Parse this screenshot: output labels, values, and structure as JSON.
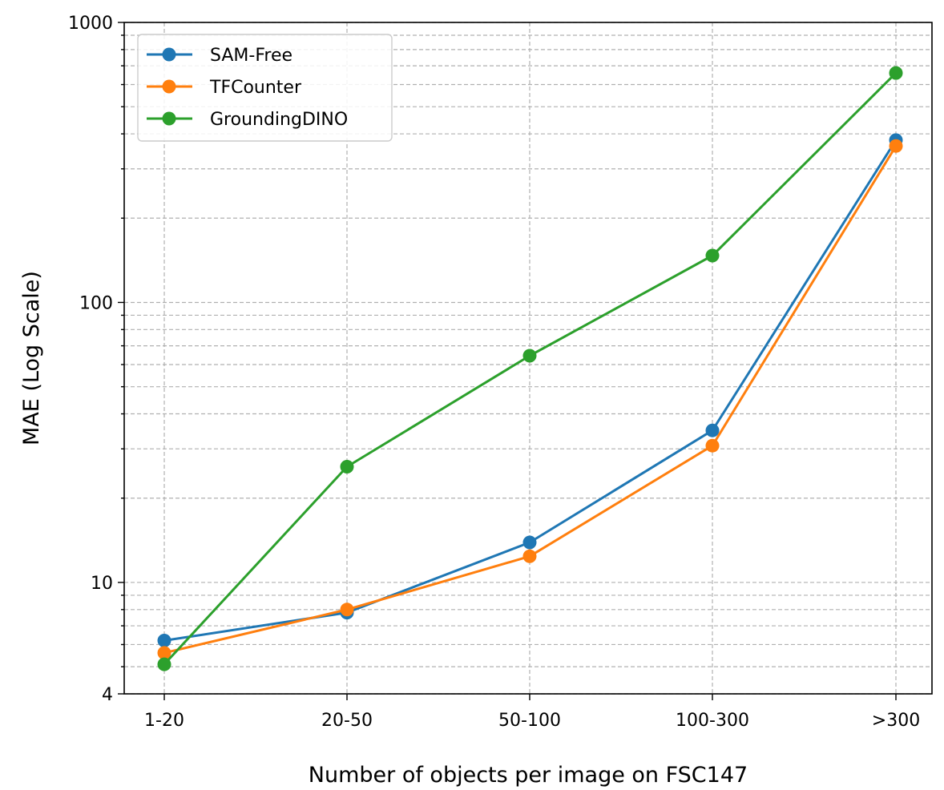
{
  "chart_data": {
    "type": "line",
    "title": "",
    "xlabel": "Number of objects per image on FSC147",
    "ylabel": "MAE (Log Scale)",
    "yscale": "log",
    "ylim": [
      4,
      1000
    ],
    "yticks": [
      4,
      10,
      100,
      1000
    ],
    "ytick_labels": [
      "4",
      "10",
      "100",
      "1000"
    ],
    "grid": true,
    "legend_position": "top-left",
    "categories": [
      "1-20",
      "20-50",
      "50-100",
      "100-300",
      ">300"
    ],
    "series": [
      {
        "name": "SAM-Free",
        "color": "#1f77b4",
        "values": [
          6.2,
          7.8,
          13.9,
          34.9,
          380
        ]
      },
      {
        "name": "TFCounter",
        "color": "#ff7f0e",
        "values": [
          5.6,
          8.0,
          12.4,
          30.8,
          362
        ]
      },
      {
        "name": "GroundingDINO",
        "color": "#2ca02c",
        "values": [
          5.1,
          25.9,
          64.5,
          147,
          660
        ]
      }
    ]
  }
}
